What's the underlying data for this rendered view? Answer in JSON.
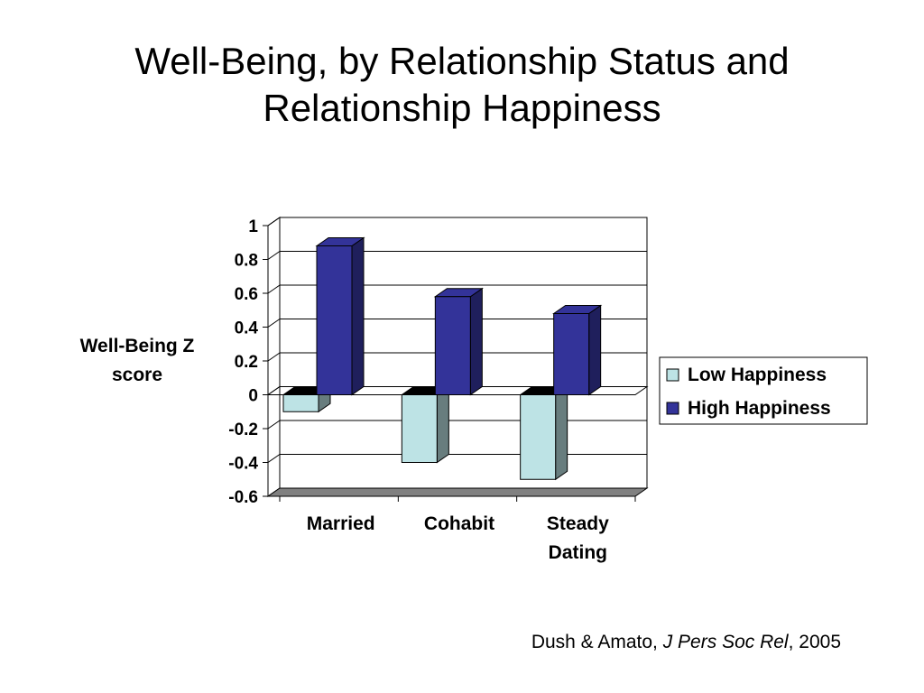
{
  "slide": {
    "title_line1": "Well-Being, by Relationship Status and",
    "title_line2": "Relationship Happiness",
    "ylabel_line1": "Well-Being Z",
    "ylabel_line2": "score",
    "citation_authors": "Dush & Amato, ",
    "citation_journal": "J Pers Soc Rel",
    "citation_year": ", 2005"
  },
  "chart_data": {
    "type": "bar",
    "style": "3d-clustered",
    "categories": [
      [
        "Married"
      ],
      [
        "Cohabit"
      ],
      [
        "Steady",
        "Dating"
      ]
    ],
    "series": [
      {
        "name": "Low Happiness",
        "values": [
          -0.1,
          -0.4,
          -0.5
        ],
        "color": "#bde3e5"
      },
      {
        "name": "High Happiness",
        "values": [
          0.88,
          0.58,
          0.48
        ],
        "color": "#333399"
      }
    ],
    "ylabel": "Well-Being Z score",
    "ylim": [
      -0.6,
      1
    ],
    "yticks": [
      "-0.6",
      "-0.4",
      "-0.2",
      "0",
      "0.2",
      "0.4",
      "0.6",
      "0.8",
      "1"
    ],
    "grid": true,
    "legend": "right"
  }
}
